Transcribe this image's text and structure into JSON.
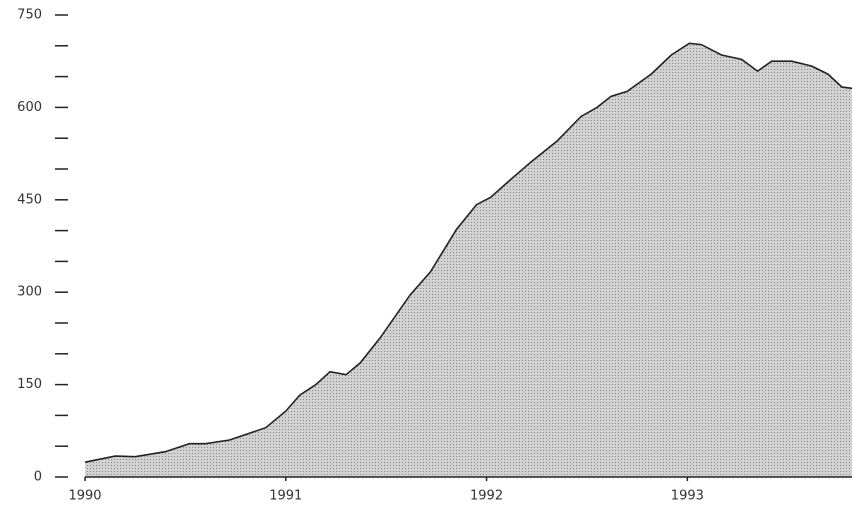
{
  "chart_data": {
    "type": "area",
    "color": "#c4c4c4",
    "line_color": "#222",
    "x": [
      1990.0,
      1990.15,
      1990.25,
      1990.4,
      1990.52,
      1990.6,
      1990.72,
      1990.9,
      1991.0,
      1991.07,
      1991.15,
      1991.22,
      1991.3,
      1991.37,
      1991.47,
      1991.62,
      1991.72,
      1991.85,
      1991.95,
      1992.02,
      1992.12,
      1992.22,
      1992.35,
      1992.47,
      1992.55,
      1992.62,
      1992.7,
      1992.82,
      1992.92,
      1993.01,
      1993.07,
      1993.17,
      1993.27,
      1993.35,
      1993.42,
      1993.52,
      1993.62,
      1993.7,
      1993.77,
      1993.82
    ],
    "values": [
      24,
      34,
      33,
      41,
      54,
      54,
      60,
      80,
      107,
      133,
      150,
      171,
      166,
      185,
      226,
      296,
      333,
      402,
      442,
      454,
      483,
      511,
      545,
      585,
      600,
      618,
      626,
      654,
      685,
      704,
      702,
      685,
      678,
      659,
      675,
      675,
      667,
      654,
      633,
      631
    ],
    "xlim": [
      1990,
      1993.82
    ],
    "xticks": [
      1990,
      1991,
      1992,
      1993
    ],
    "ylim": [
      0,
      750
    ],
    "yticks": [
      0,
      150,
      300,
      450,
      600,
      750
    ],
    "minor_yticks": [
      50,
      100,
      200,
      250,
      350,
      400,
      500,
      550,
      650,
      700
    ]
  }
}
